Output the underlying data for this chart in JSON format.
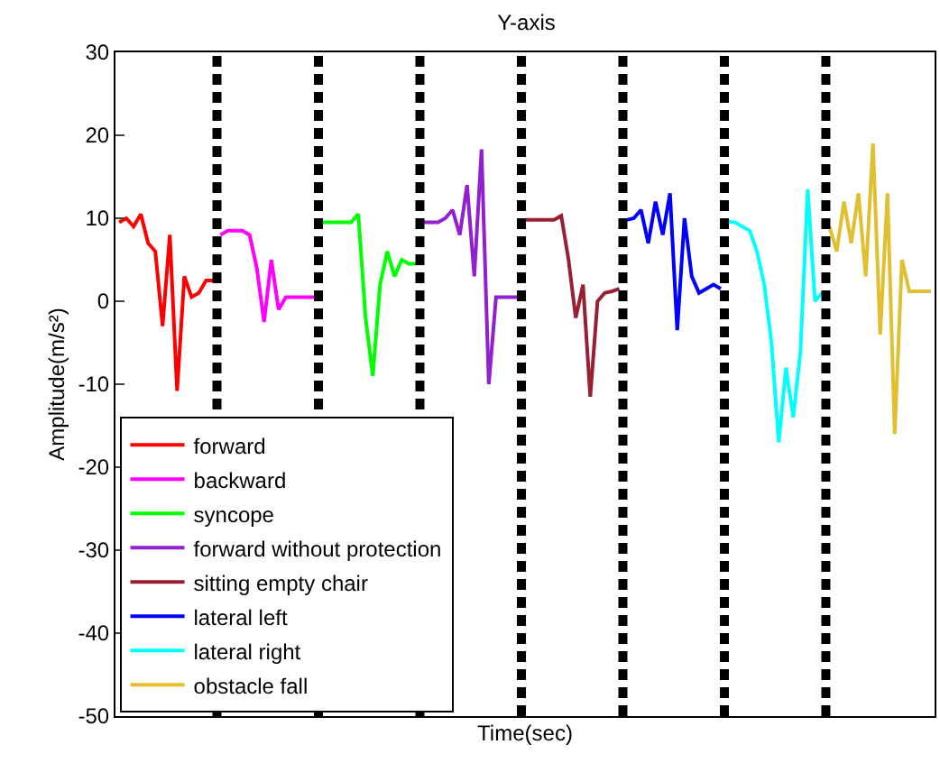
{
  "chart_data": {
    "type": "line",
    "title": "Y-axis",
    "xlabel": "Time(sec)",
    "ylabel": "Amplitude(m/s²)",
    "categories": [
      null,
      null,
      null,
      null,
      null,
      null,
      null,
      null,
      null,
      null,
      null,
      null,
      null,
      null,
      null,
      null,
      null,
      null,
      null,
      null,
      null,
      null,
      null,
      null,
      null,
      null,
      null,
      null,
      null,
      null,
      null,
      null,
      null,
      null,
      null,
      null,
      null,
      null,
      null,
      null,
      null,
      null,
      null,
      null,
      null,
      null,
      null,
      null,
      null,
      null,
      null,
      null,
      null,
      null,
      null,
      null,
      null,
      null,
      null,
      null,
      null,
      null,
      null,
      null,
      null,
      null,
      null,
      null,
      null,
      null,
      null,
      null,
      null,
      null,
      null,
      null,
      null,
      null,
      null,
      null,
      null,
      null,
      null,
      null,
      null,
      null,
      null,
      null,
      null,
      null,
      null,
      null,
      null,
      null,
      null,
      null,
      null,
      null,
      null,
      null,
      null,
      null,
      null,
      null,
      null,
      null,
      null,
      null,
      null,
      null,
      null,
      null,
      null
    ],
    "ylim": [
      -50,
      30
    ],
    "yticks": [
      -50,
      -40,
      -30,
      -20,
      -10,
      0,
      10,
      20,
      30
    ],
    "legend": "bottom left",
    "line_style": "solid",
    "series": [
      {
        "name": "forward",
        "color": "#ff0000",
        "values": [
          9.5,
          10,
          9,
          10.5,
          7,
          6,
          -3,
          8,
          -10.8,
          3,
          0.5,
          1,
          2.5,
          2.5,
          null,
          null,
          null,
          null,
          null,
          null,
          null,
          null,
          null,
          null,
          null,
          null,
          null,
          null,
          null,
          null,
          null,
          null,
          null,
          null,
          null,
          null,
          null,
          null,
          null,
          null,
          null,
          null,
          null,
          null,
          null,
          null,
          null,
          null,
          null,
          null,
          null,
          null,
          null,
          null,
          null,
          null,
          null,
          null,
          null,
          null,
          null,
          null,
          null,
          null,
          null,
          null,
          null,
          null,
          null,
          null,
          null,
          null,
          null,
          null,
          null,
          null,
          null,
          null,
          null,
          null,
          null,
          null,
          null,
          null,
          null,
          null,
          null,
          null,
          null,
          null,
          null,
          null,
          null,
          null,
          null,
          null,
          null,
          null,
          null,
          null,
          null,
          null,
          null,
          null,
          null,
          null,
          null,
          null,
          null,
          null,
          null,
          null,
          null
        ]
      },
      {
        "name": "backward",
        "color": "#ff00ff",
        "values": [
          null,
          null,
          null,
          null,
          null,
          null,
          null,
          null,
          null,
          null,
          null,
          null,
          null,
          null,
          8,
          8.5,
          8.5,
          8.5,
          8,
          4,
          -2.5,
          5,
          -1,
          0.5,
          0.5,
          0.5,
          0.5,
          0.5,
          null,
          null,
          null,
          null,
          null,
          null,
          null,
          null,
          null,
          null,
          null,
          null,
          null,
          null,
          null,
          null,
          null,
          null,
          null,
          null,
          null,
          null,
          null,
          null,
          null,
          null,
          null,
          null,
          null,
          null,
          null,
          null,
          null,
          null,
          null,
          null,
          null,
          null,
          null,
          null,
          null,
          null,
          null,
          null,
          null,
          null,
          null,
          null,
          null,
          null,
          null,
          null,
          null,
          null,
          null,
          null,
          null,
          null,
          null,
          null,
          null,
          null,
          null,
          null,
          null,
          null,
          null,
          null,
          null,
          null,
          null,
          null,
          null,
          null,
          null,
          null,
          null,
          null,
          null,
          null,
          null,
          null,
          null,
          null,
          null
        ]
      },
      {
        "name": "syncope",
        "color": "#00ff00",
        "values": [
          null,
          null,
          null,
          null,
          null,
          null,
          null,
          null,
          null,
          null,
          null,
          null,
          null,
          null,
          null,
          null,
          null,
          null,
          null,
          null,
          null,
          null,
          null,
          null,
          null,
          null,
          null,
          null,
          9.5,
          9.5,
          9.5,
          9.5,
          9.5,
          10.5,
          -2,
          -9,
          2,
          6,
          3,
          5,
          4.5,
          4.5,
          null,
          null,
          null,
          null,
          null,
          null,
          null,
          null,
          null,
          null,
          null,
          null,
          null,
          null,
          null,
          null,
          null,
          null,
          null,
          null,
          null,
          null,
          null,
          null,
          null,
          null,
          null,
          null,
          null,
          null,
          null,
          null,
          null,
          null,
          null,
          null,
          null,
          null,
          null,
          null,
          null,
          null,
          null,
          null,
          null,
          null,
          null,
          null,
          null,
          null,
          null,
          null,
          null,
          null,
          null,
          null,
          null,
          null,
          null,
          null,
          null,
          null,
          null,
          null,
          null,
          null,
          null,
          null,
          null,
          null,
          null
        ]
      },
      {
        "name": "forward without protection",
        "color": "#9020d0",
        "values": [
          null,
          null,
          null,
          null,
          null,
          null,
          null,
          null,
          null,
          null,
          null,
          null,
          null,
          null,
          null,
          null,
          null,
          null,
          null,
          null,
          null,
          null,
          null,
          null,
          null,
          null,
          null,
          null,
          null,
          null,
          null,
          null,
          null,
          null,
          null,
          null,
          null,
          null,
          null,
          null,
          null,
          null,
          9.5,
          9.5,
          9.5,
          10,
          11,
          8,
          14,
          3,
          18.3,
          -10,
          0.5,
          0.5,
          0.5,
          0.5,
          null,
          null,
          null,
          null,
          null,
          null,
          null,
          null,
          null,
          null,
          null,
          null,
          null,
          null,
          null,
          null,
          null,
          null,
          null,
          null,
          null,
          null,
          null,
          null,
          null,
          null,
          null,
          null,
          null,
          null,
          null,
          null,
          null,
          null,
          null,
          null,
          null,
          null,
          null,
          null,
          null,
          null,
          null,
          null,
          null,
          null,
          null,
          null,
          null,
          null,
          null,
          null,
          null,
          null,
          null,
          null,
          null
        ]
      },
      {
        "name": "sitting empty chair",
        "color": "#991f33",
        "values": [
          null,
          null,
          null,
          null,
          null,
          null,
          null,
          null,
          null,
          null,
          null,
          null,
          null,
          null,
          null,
          null,
          null,
          null,
          null,
          null,
          null,
          null,
          null,
          null,
          null,
          null,
          null,
          null,
          null,
          null,
          null,
          null,
          null,
          null,
          null,
          null,
          null,
          null,
          null,
          null,
          null,
          null,
          null,
          null,
          null,
          null,
          null,
          null,
          null,
          null,
          null,
          null,
          null,
          null,
          null,
          null,
          9.8,
          9.8,
          9.8,
          9.8,
          9.8,
          10.3,
          5,
          -2,
          2,
          -11.5,
          0,
          1,
          1.2,
          1.5,
          null,
          null,
          null,
          null,
          null,
          null,
          null,
          null,
          null,
          null,
          null,
          null,
          null,
          null,
          null,
          null,
          null,
          null,
          null,
          null,
          null,
          null,
          null,
          null,
          null,
          null,
          null,
          null,
          null,
          null,
          null,
          null,
          null,
          null,
          null,
          null,
          null,
          null,
          null,
          null,
          null,
          null,
          null
        ]
      },
      {
        "name": "lateral left",
        "color": "#0000ff",
        "values": [
          null,
          null,
          null,
          null,
          null,
          null,
          null,
          null,
          null,
          null,
          null,
          null,
          null,
          null,
          null,
          null,
          null,
          null,
          null,
          null,
          null,
          null,
          null,
          null,
          null,
          null,
          null,
          null,
          null,
          null,
          null,
          null,
          null,
          null,
          null,
          null,
          null,
          null,
          null,
          null,
          null,
          null,
          null,
          null,
          null,
          null,
          null,
          null,
          null,
          null,
          null,
          null,
          null,
          null,
          null,
          null,
          null,
          null,
          null,
          null,
          null,
          null,
          null,
          null,
          null,
          null,
          null,
          null,
          null,
          null,
          9.8,
          10,
          11,
          7,
          12,
          8,
          13,
          -3.5,
          10,
          3,
          1,
          1.5,
          2,
          1.5,
          null,
          null,
          null,
          null,
          null,
          null,
          null,
          null,
          null,
          null,
          null,
          null,
          null,
          null,
          null,
          null,
          null,
          null,
          null,
          null,
          null,
          null,
          null,
          null,
          null,
          null,
          null,
          null,
          null
        ]
      },
      {
        "name": "lateral right",
        "color": "#00ffff",
        "values": [
          null,
          null,
          null,
          null,
          null,
          null,
          null,
          null,
          null,
          null,
          null,
          null,
          null,
          null,
          null,
          null,
          null,
          null,
          null,
          null,
          null,
          null,
          null,
          null,
          null,
          null,
          null,
          null,
          null,
          null,
          null,
          null,
          null,
          null,
          null,
          null,
          null,
          null,
          null,
          null,
          null,
          null,
          null,
          null,
          null,
          null,
          null,
          null,
          null,
          null,
          null,
          null,
          null,
          null,
          null,
          null,
          null,
          null,
          null,
          null,
          null,
          null,
          null,
          null,
          null,
          null,
          null,
          null,
          null,
          null,
          null,
          null,
          null,
          null,
          null,
          null,
          null,
          null,
          null,
          null,
          null,
          null,
          null,
          null,
          9.6,
          9.5,
          9,
          8.5,
          6,
          2,
          -5,
          -17,
          -8,
          -14,
          -6,
          13.5,
          0,
          1,
          null,
          null,
          null,
          null,
          null,
          null,
          null,
          null,
          null,
          null,
          null,
          null,
          null,
          null,
          null
        ]
      },
      {
        "name": "obstacle fall",
        "color": "#e0c030",
        "values": [
          null,
          null,
          null,
          null,
          null,
          null,
          null,
          null,
          null,
          null,
          null,
          null,
          null,
          null,
          null,
          null,
          null,
          null,
          null,
          null,
          null,
          null,
          null,
          null,
          null,
          null,
          null,
          null,
          null,
          null,
          null,
          null,
          null,
          null,
          null,
          null,
          null,
          null,
          null,
          null,
          null,
          null,
          null,
          null,
          null,
          null,
          null,
          null,
          null,
          null,
          null,
          null,
          null,
          null,
          null,
          null,
          null,
          null,
          null,
          null,
          null,
          null,
          null,
          null,
          null,
          null,
          null,
          null,
          null,
          null,
          null,
          null,
          null,
          null,
          null,
          null,
          null,
          null,
          null,
          null,
          null,
          null,
          null,
          null,
          null,
          null,
          null,
          null,
          null,
          null,
          null,
          null,
          null,
          null,
          null,
          null,
          null,
          null,
          9,
          6,
          12,
          7,
          13,
          3,
          19,
          -4,
          13,
          -16,
          5,
          1.2,
          1.2,
          1.2,
          1.2
        ]
      }
    ]
  }
}
